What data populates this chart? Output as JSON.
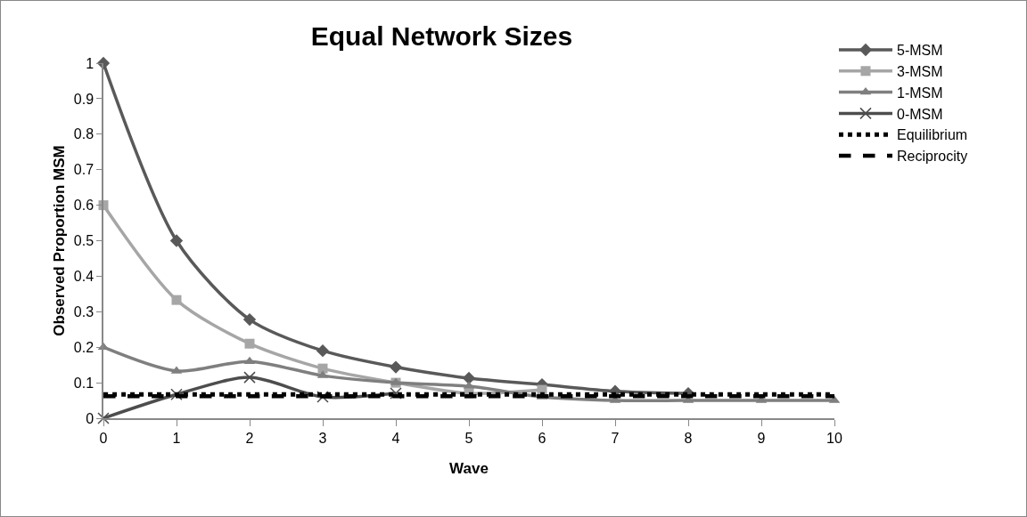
{
  "chart_data": {
    "type": "line",
    "title": "Equal Network Sizes",
    "xlabel": "Wave",
    "ylabel": "Observed Proportion MSM",
    "x": [
      0,
      1,
      2,
      3,
      4,
      5,
      6,
      7,
      8,
      9,
      10
    ],
    "xlim": [
      0,
      10
    ],
    "xticks": [
      0,
      1,
      2,
      3,
      4,
      5,
      6,
      7,
      8,
      9,
      10
    ],
    "ylim": [
      0,
      1
    ],
    "yticks": [
      0,
      0.1,
      0.2,
      0.3,
      0.4,
      0.5,
      0.6,
      0.7,
      0.8,
      0.9,
      1
    ],
    "grid": false,
    "legend": "top right",
    "series": [
      {
        "name": "5-MSM",
        "color": "#595959",
        "marker": "diamond",
        "line_style": "solid",
        "values": [
          1,
          0.5,
          0.278,
          0.19,
          0.144,
          0.113,
          0.095,
          0.076,
          0.07,
          null,
          null
        ]
      },
      {
        "name": "3-MSM",
        "color": "#a6a6a6",
        "marker": "square",
        "line_style": "solid",
        "values": [
          0.6,
          0.333,
          0.21,
          0.14,
          0.1,
          0.07,
          0.08,
          null,
          null,
          null,
          null
        ]
      },
      {
        "name": "1-MSM",
        "color": "#7f7f7f",
        "marker": "triangle",
        "line_style": "solid",
        "values": [
          0.2,
          0.133,
          0.16,
          0.12,
          0.1,
          0.09,
          0.06,
          0.05,
          0.05,
          0.05,
          0.05
        ]
      },
      {
        "name": "0-MSM",
        "color": "#4d4d4d",
        "marker": "cross",
        "line_style": "solid",
        "values": [
          0,
          0.067,
          0.115,
          0.06,
          0.07,
          null,
          null,
          null,
          null,
          null,
          null
        ]
      },
      {
        "name": "Equilibrium",
        "color": "#000000",
        "marker": "none",
        "line_style": "dotted",
        "values": [
          0.067,
          0.067,
          0.067,
          0.067,
          0.067,
          0.067,
          0.067,
          0.067,
          0.067,
          0.067,
          0.067
        ]
      },
      {
        "name": "Reciprocity",
        "color": "#000000",
        "marker": "none",
        "line_style": "dashed",
        "values": [
          0.062,
          0.062,
          0.062,
          0.062,
          0.062,
          0.062,
          0.062,
          0.062,
          0.062,
          0.062,
          0.062
        ]
      }
    ]
  }
}
